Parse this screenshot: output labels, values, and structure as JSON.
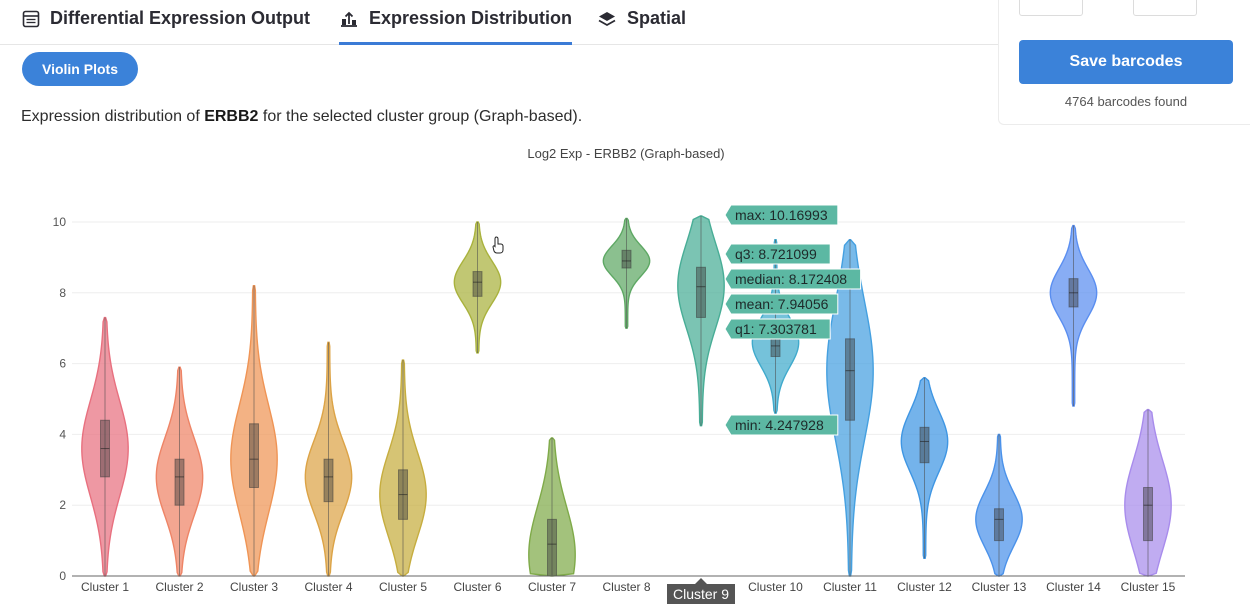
{
  "tabs": [
    {
      "label": "Differential Expression Output",
      "icon": "table-icon",
      "active": false
    },
    {
      "label": "Expression Distribution",
      "icon": "distribution-icon",
      "active": true
    },
    {
      "label": "Spatial",
      "icon": "layers-icon",
      "active": false
    }
  ],
  "toolbar": {
    "violin_button": "Violin Plots"
  },
  "description": {
    "prefix": "Expression distribution of ",
    "gene": "ERBB2",
    "suffix": " for the selected cluster group (Graph-based)."
  },
  "side_panel": {
    "save_label": "Save barcodes",
    "barcodes_found": "4764 barcodes found"
  },
  "colors": {
    "accent": "#3b82d9"
  },
  "chart_data": {
    "type": "violin",
    "title": "Log2 Exp - ERBB2 (Graph-based)",
    "xlabel": "",
    "ylabel": "",
    "ylim": [
      0,
      11
    ],
    "yticks": [
      0,
      2,
      4,
      6,
      8,
      10
    ],
    "grid": true,
    "highlighted": "Cluster 9",
    "series": [
      {
        "name": "Cluster 1",
        "color": "#e8707f",
        "min": 0,
        "max": 7.3,
        "q1": 2.8,
        "median": 3.6,
        "q3": 4.4,
        "peak": 3.6
      },
      {
        "name": "Cluster 2",
        "color": "#ee8466",
        "min": 0,
        "max": 5.9,
        "q1": 2.0,
        "median": 2.8,
        "q3": 3.3,
        "peak": 2.8
      },
      {
        "name": "Cluster 3",
        "color": "#ef9455",
        "min": 0,
        "max": 8.2,
        "q1": 2.5,
        "median": 3.3,
        "q3": 4.3,
        "peak": 3.3
      },
      {
        "name": "Cluster 4",
        "color": "#dca346",
        "min": 0,
        "max": 6.6,
        "q1": 2.1,
        "median": 2.8,
        "q3": 3.3,
        "peak": 2.8
      },
      {
        "name": "Cluster 5",
        "color": "#c6ad3f",
        "min": 0,
        "max": 6.1,
        "q1": 1.6,
        "median": 2.3,
        "q3": 3.0,
        "peak": 2.3
      },
      {
        "name": "Cluster 6",
        "color": "#a9b23d",
        "min": 6.3,
        "max": 10.0,
        "q1": 7.9,
        "median": 8.3,
        "q3": 8.6,
        "peak": 8.3
      },
      {
        "name": "Cluster 7",
        "color": "#7faa49",
        "min": 0,
        "max": 3.9,
        "q1": 0,
        "median": 0.9,
        "q3": 1.6,
        "peak": 0.6
      },
      {
        "name": "Cluster 8",
        "color": "#5ea864",
        "min": 7.0,
        "max": 10.1,
        "q1": 8.7,
        "median": 8.9,
        "q3": 9.2,
        "peak": 8.9
      },
      {
        "name": "Cluster 9",
        "color": "#48ad96",
        "min": 4.247928,
        "max": 10.16993,
        "q1": 7.303781,
        "median": 8.172408,
        "q3": 8.721099,
        "mean": 7.94056,
        "peak": 8.2
      },
      {
        "name": "Cluster 10",
        "color": "#40aacc",
        "min": 4.6,
        "max": 9.5,
        "q1": 6.2,
        "median": 6.5,
        "q3": 7.0,
        "peak": 6.6
      },
      {
        "name": "Cluster 11",
        "color": "#45a0e0",
        "min": 0,
        "max": 9.5,
        "q1": 4.4,
        "median": 5.8,
        "q3": 6.7,
        "peak": 5.8
      },
      {
        "name": "Cluster 12",
        "color": "#3f96e3",
        "min": 0.5,
        "max": 5.6,
        "q1": 3.2,
        "median": 3.8,
        "q3": 4.2,
        "peak": 3.8
      },
      {
        "name": "Cluster 13",
        "color": "#4b92ea",
        "min": 0,
        "max": 4.0,
        "q1": 1.0,
        "median": 1.6,
        "q3": 1.9,
        "peak": 1.6
      },
      {
        "name": "Cluster 14",
        "color": "#5a8ef0",
        "min": 4.8,
        "max": 9.9,
        "q1": 7.6,
        "median": 8.0,
        "q3": 8.4,
        "peak": 8.0
      },
      {
        "name": "Cluster 15",
        "color": "#a88cec",
        "min": 0,
        "max": 4.7,
        "q1": 1.0,
        "median": 2.0,
        "q3": 2.5,
        "peak": 2.0
      }
    ],
    "hover_labels": [
      {
        "text": "max: 10.16993",
        "value": 10.16993
      },
      {
        "text": "q3: 8.721099",
        "value": 8.721099
      },
      {
        "text": "median: 8.172408",
        "value": 8.172408
      },
      {
        "text": "mean: 7.94056",
        "value": 7.94056
      },
      {
        "text": "q1: 7.303781",
        "value": 7.303781
      },
      {
        "text": "min: 4.247928",
        "value": 4.247928
      }
    ]
  }
}
